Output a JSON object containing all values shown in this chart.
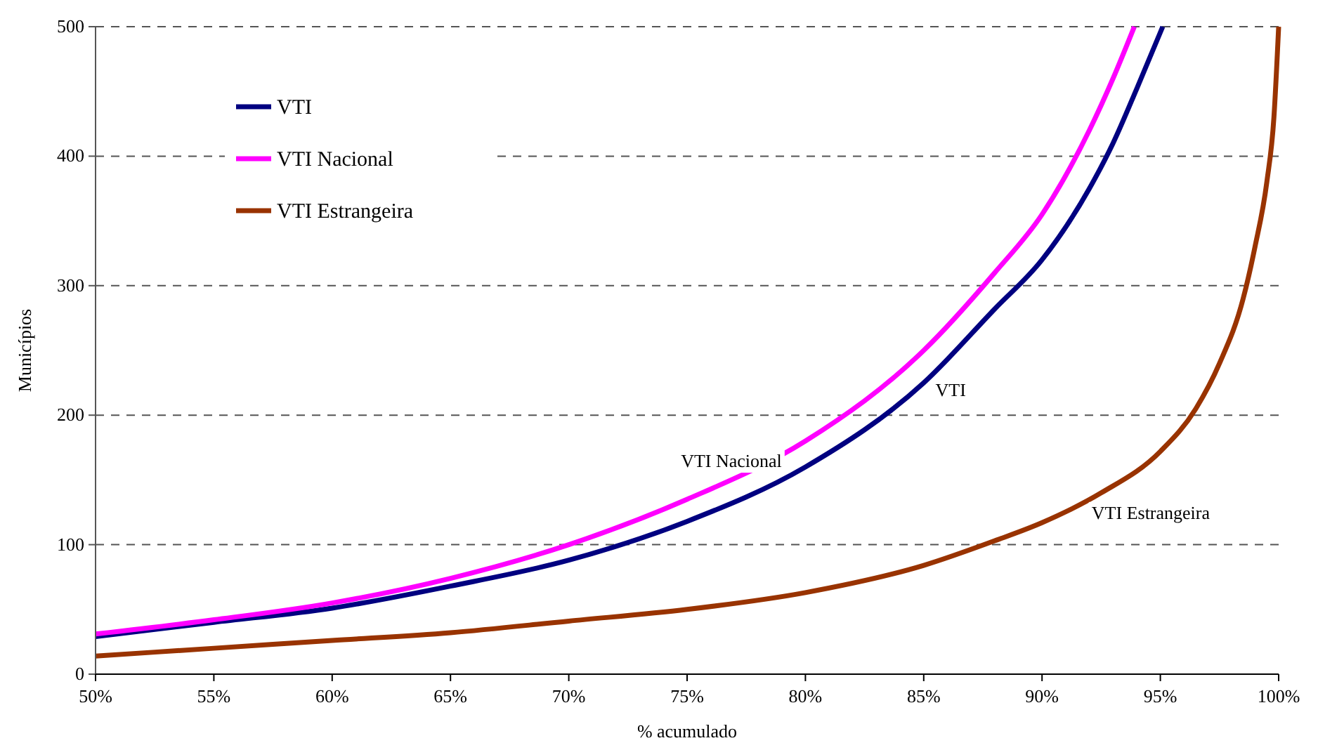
{
  "chart_data": {
    "type": "line",
    "xlabel": "% acumulado",
    "ylabel": "Municípios",
    "xlim": [
      50,
      100
    ],
    "ylim": [
      0,
      500
    ],
    "xticks": [
      {
        "value": 50,
        "label": "50%"
      },
      {
        "value": 55,
        "label": "55%"
      },
      {
        "value": 60,
        "label": "60%"
      },
      {
        "value": 65,
        "label": "65%"
      },
      {
        "value": 70,
        "label": "70%"
      },
      {
        "value": 75,
        "label": "75%"
      },
      {
        "value": 80,
        "label": "80%"
      },
      {
        "value": 85,
        "label": "85%"
      },
      {
        "value": 90,
        "label": "90%"
      },
      {
        "value": 95,
        "label": "95%"
      },
      {
        "value": 100,
        "label": "100%"
      }
    ],
    "yticks": [
      0,
      100,
      200,
      300,
      400,
      500
    ],
    "grid": "y",
    "legend": "top left",
    "marker": "none",
    "line_style": "solid",
    "series": [
      {
        "name": "VTI",
        "color": "#000080",
        "x": [
          50,
          55,
          60,
          65,
          70,
          75,
          80,
          85,
          88,
          90,
          92,
          93,
          94,
          95.1
        ],
        "values": [
          29,
          40,
          51,
          68,
          88,
          118,
          160,
          225,
          282,
          320,
          375,
          410,
          452,
          500
        ]
      },
      {
        "name": "VTI Nacional",
        "color": "#ff00ff",
        "x": [
          50,
          55,
          60,
          65,
          70,
          75,
          80,
          85,
          88,
          90,
          91,
          92,
          93,
          93.9
        ],
        "values": [
          31,
          42,
          55,
          74,
          100,
          135,
          180,
          250,
          310,
          355,
          385,
          420,
          460,
          500
        ]
      },
      {
        "name": "VTI Estrangeira",
        "color": "#993300",
        "x": [
          50,
          55,
          60,
          65,
          70,
          75,
          80,
          85,
          88,
          90,
          92.5,
          95,
          96.5,
          97.5,
          98.5,
          99,
          99.5,
          99.8,
          100
        ],
        "values": [
          14,
          20,
          26,
          32,
          41,
          50,
          63,
          84,
          103,
          117,
          140,
          172,
          205,
          240,
          290,
          330,
          380,
          430,
          500
        ]
      }
    ],
    "annotations": [
      {
        "text": "VTI",
        "x": 85.2,
        "y": 229
      },
      {
        "text": "VTI Nacional",
        "x": 79.3,
        "y": 174
      },
      {
        "text": "VTI Estrangeira",
        "x": 91.8,
        "y": 134
      }
    ]
  }
}
